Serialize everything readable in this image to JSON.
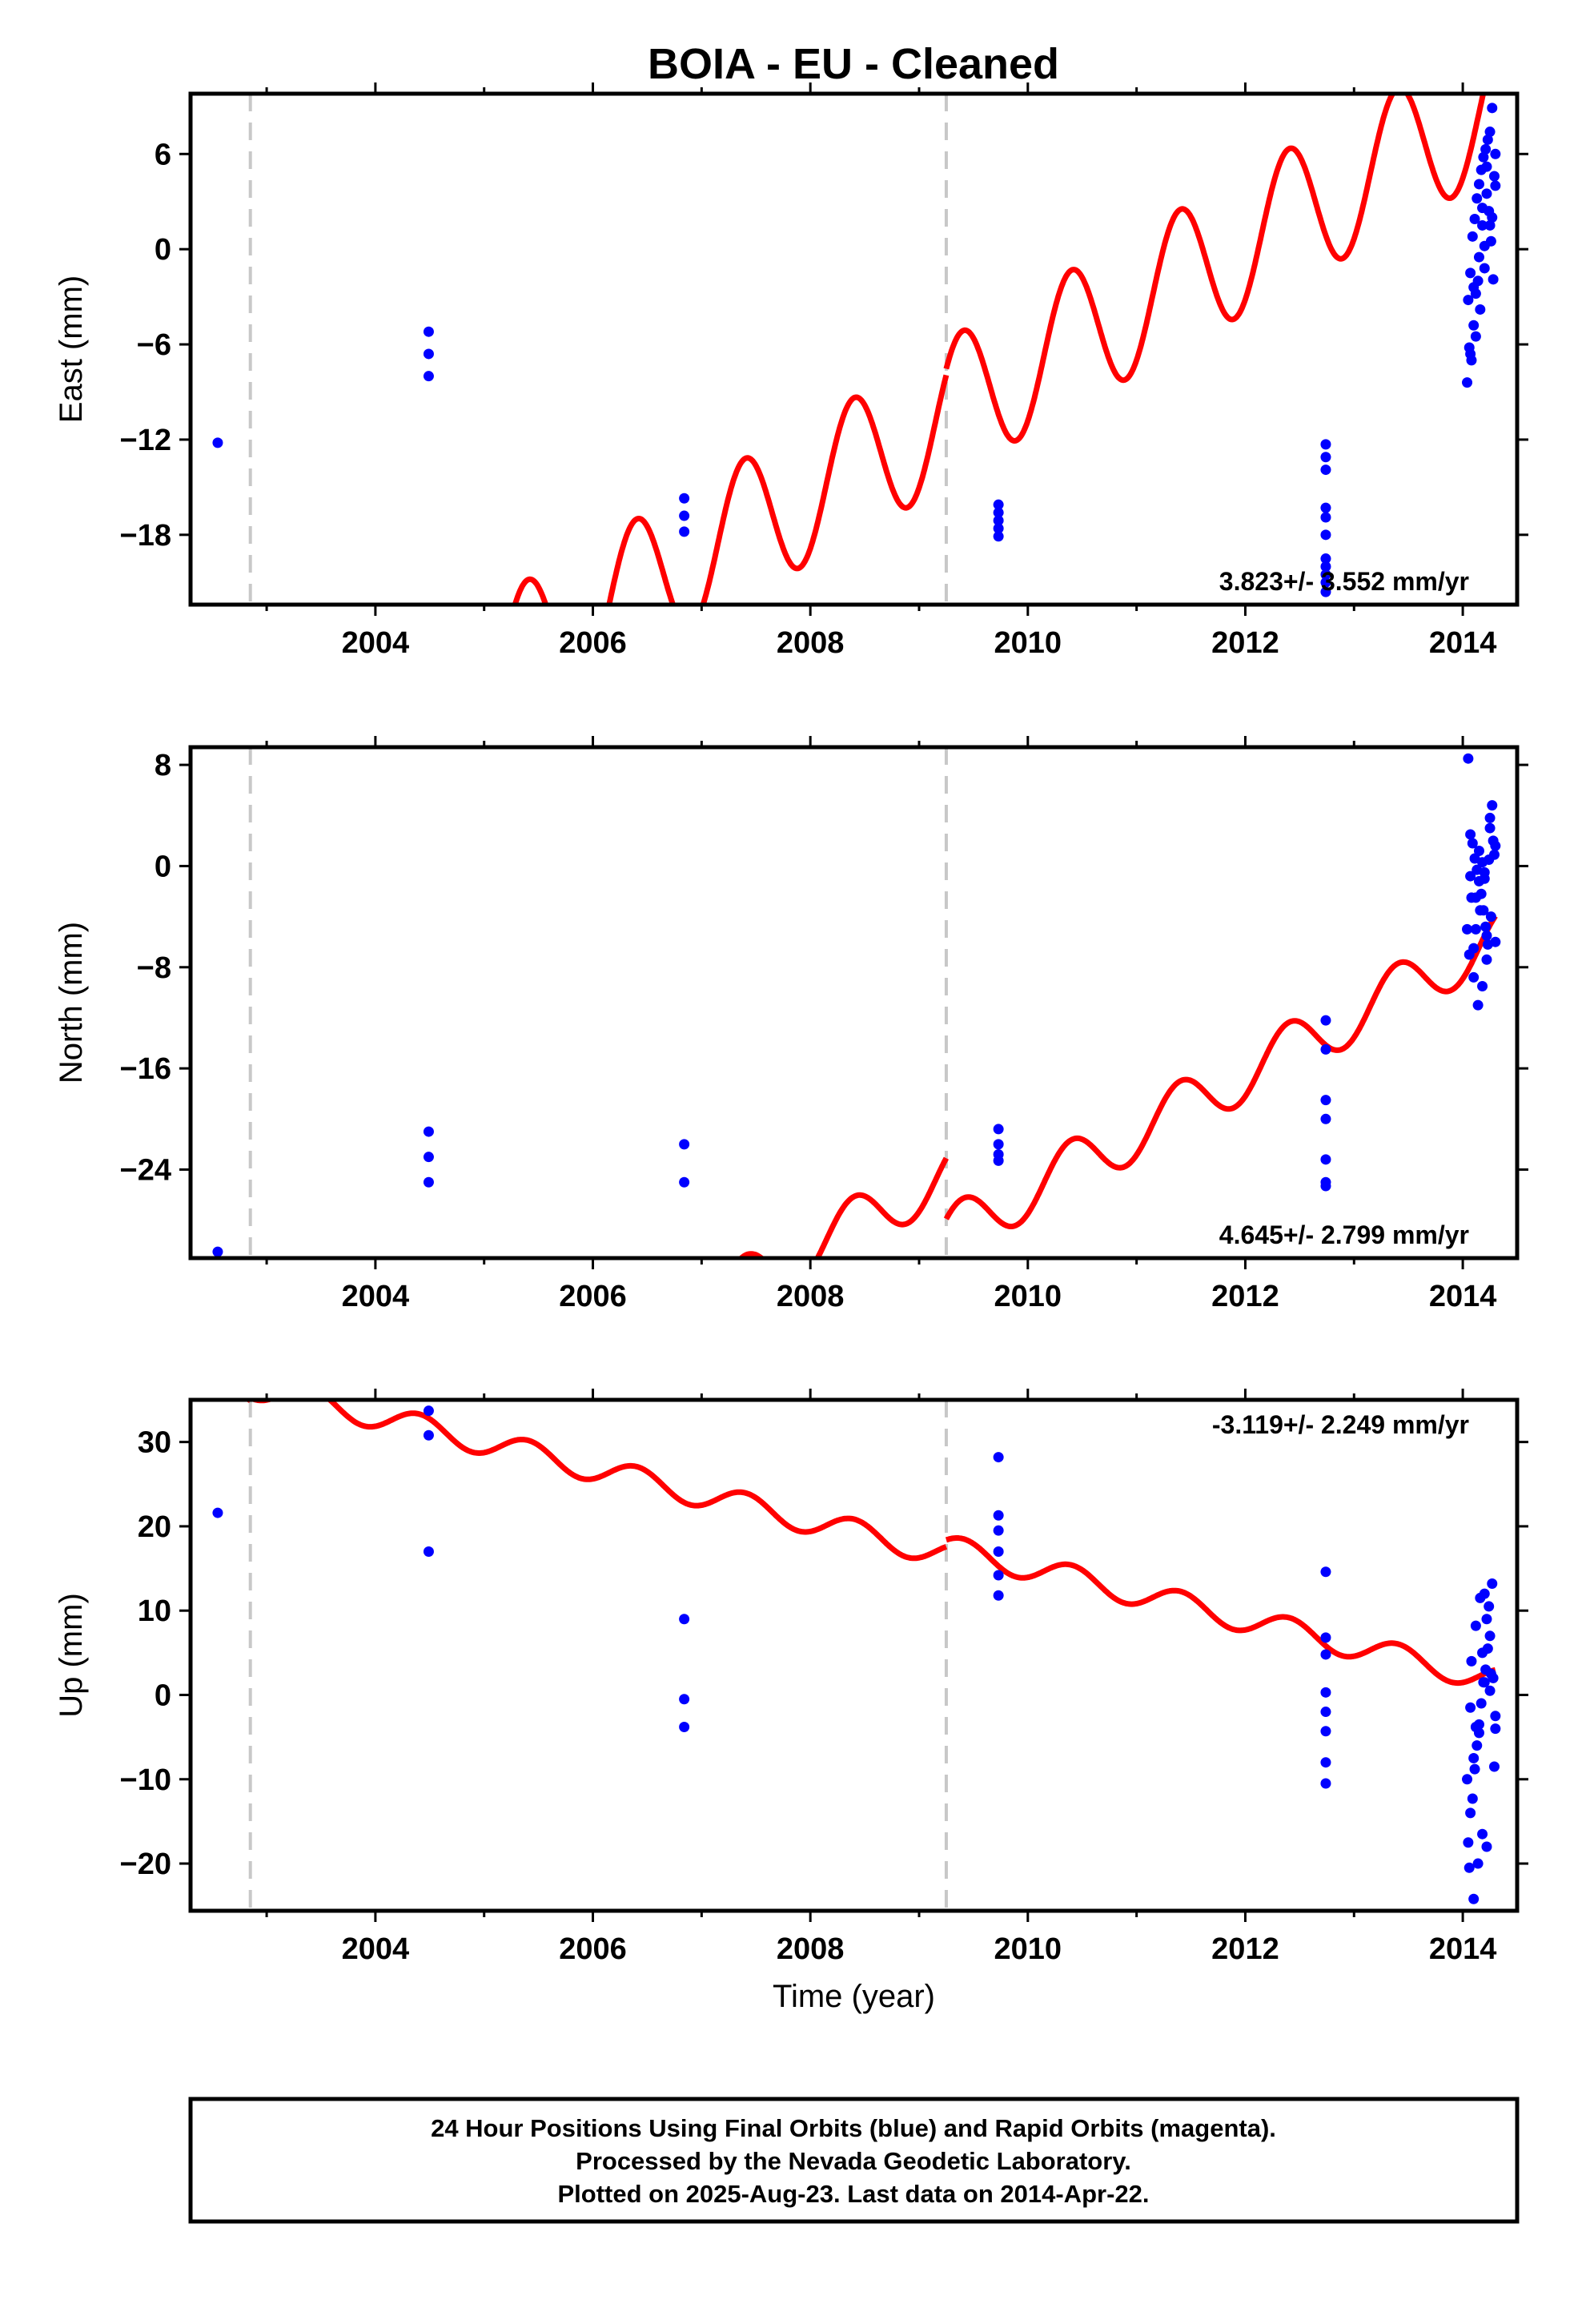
{
  "title": "BOIA  - EU - Cleaned",
  "footer": {
    "line1": "24 Hour Positions Using Final Orbits (blue) and Rapid Orbits (magenta).",
    "line2": "Processed by the Nevada Geodetic Laboratory.",
    "line3": "Plotted on 2025-Aug-23. Last data on 2014-Apr-22."
  },
  "colors": {
    "model": "#ff0000",
    "final_orbits": "#0000ff",
    "offsets": "#c8c8c8",
    "axes": "#000000"
  },
  "chart_data": [
    {
      "type": "scatter",
      "component": "East",
      "ylabel": "East (mm)",
      "xlabel": "",
      "xlim": [
        2002.3,
        2014.5
      ],
      "ylim": [
        -22.4,
        9.8
      ],
      "xticks": [
        2004,
        2006,
        2008,
        2010,
        2012,
        2014
      ],
      "yticks": [
        6,
        0,
        -6,
        -12,
        -18
      ],
      "rate_label": "3.823+/- 3.552 mm/yr",
      "rate_position": "bottom-right",
      "offsets": [
        2002.85,
        2009.25
      ],
      "model": {
        "rate": 3.823,
        "amplitude": 4.4,
        "phase_year": 2004.4,
        "segments": [
          {
            "start": 2002.5,
            "end": 2002.85,
            "mean": -15.9
          },
          {
            "start": 2002.85,
            "end": 2009.25,
            "mean": -15.3
          },
          {
            "start": 2009.25,
            "end": 2014.3,
            "mean": -14.9
          }
        ]
      },
      "series": [
        {
          "color": "#0000ff",
          "x": [
            2002.55,
            2004.49,
            2004.49,
            2004.49,
            2006.84,
            2006.84,
            2006.84,
            2009.73,
            2009.73,
            2009.73,
            2009.73,
            2009.73,
            2012.74,
            2012.74,
            2012.74,
            2012.74,
            2012.74,
            2012.74,
            2012.74,
            2012.74,
            2012.74,
            2012.74,
            2012.74,
            2014.05,
            2014.07,
            2014.09,
            2014.11,
            2014.13,
            2014.15,
            2014.17,
            2014.19,
            2014.21,
            2014.23,
            2014.25,
            2014.27,
            2014.29,
            2014.06,
            2014.1,
            2014.14,
            2014.18,
            2014.22,
            2014.26,
            2014.08,
            2014.12,
            2014.16,
            2014.2,
            2014.24,
            2014.28,
            2014.3,
            2014.04,
            2014.1,
            2014.15,
            2014.2,
            2014.25,
            2014.3,
            2014.07,
            2014.12,
            2014.18,
            2014.22,
            2014.27
          ],
          "y": [
            -12.2,
            -5.2,
            -6.6,
            -8.0,
            -15.7,
            -16.8,
            -17.8,
            -16.1,
            -16.6,
            -17.1,
            -17.6,
            -18.1,
            -12.3,
            -13.1,
            -13.9,
            -16.3,
            -16.9,
            -18.0,
            -19.5,
            -20.0,
            -20.5,
            -21.0,
            -21.6,
            -3.2,
            -1.5,
            0.8,
            1.9,
            3.2,
            4.1,
            5.0,
            5.8,
            6.3,
            6.9,
            7.4,
            8.9,
            4.6,
            -6.2,
            -4.8,
            -2.0,
            1.5,
            3.5,
            0.5,
            -7.0,
            -5.5,
            -3.8,
            -1.2,
            2.4,
            -1.9,
            4.0,
            -8.4,
            -2.4,
            -0.5,
            0.2,
            1.5,
            6.0,
            -6.6,
            -2.8,
            2.6,
            5.2,
            2.0
          ]
        }
      ]
    },
    {
      "type": "scatter",
      "component": "North",
      "ylabel": "North (mm)",
      "xlabel": "",
      "xlim": [
        2002.3,
        2014.5
      ],
      "ylim": [
        -31.0,
        9.4
      ],
      "xticks": [
        2004,
        2006,
        2008,
        2010,
        2012,
        2014
      ],
      "yticks": [
        8,
        0,
        -8,
        -16,
        -24
      ],
      "rate_label": "4.645+/- 2.799 mm/yr",
      "rate_position": "bottom-right",
      "offsets": [
        2002.85,
        2009.25
      ],
      "model": {
        "rate": 4.645,
        "amplitude": 2.2,
        "phase_year": 2004.4,
        "segments": [
          {
            "start": 2002.5,
            "end": 2002.85,
            "mean": -31.5
          },
          {
            "start": 2002.85,
            "end": 2009.25,
            "mean": -30.2
          },
          {
            "start": 2009.25,
            "end": 2014.3,
            "mean": -35.0
          }
        ]
      },
      "series": [
        {
          "color": "#0000ff",
          "x": [
            2002.55,
            2004.49,
            2004.49,
            2004.49,
            2006.84,
            2006.84,
            2009.73,
            2009.73,
            2009.73,
            2009.73,
            2012.74,
            2012.74,
            2012.74,
            2012.74,
            2012.74,
            2012.74,
            2012.74,
            2014.05,
            2014.07,
            2014.09,
            2014.11,
            2014.13,
            2014.15,
            2014.17,
            2014.19,
            2014.21,
            2014.23,
            2014.25,
            2014.27,
            2014.29,
            2014.06,
            2014.1,
            2014.14,
            2014.18,
            2014.22,
            2014.26,
            2014.08,
            2014.12,
            2014.16,
            2014.2,
            2014.24,
            2014.28,
            2014.3,
            2014.04,
            2014.1,
            2014.15,
            2014.2,
            2014.25,
            2014.07,
            2014.12,
            2014.18,
            2014.22,
            2014.3
          ],
          "y": [
            -30.5,
            -21.0,
            -23.0,
            -25.0,
            -22.0,
            -25.0,
            -20.8,
            -22.0,
            -22.8,
            -23.3,
            -12.2,
            -14.5,
            -18.5,
            -20.0,
            -23.2,
            -25.0,
            -25.3,
            8.5,
            2.5,
            1.8,
            0.6,
            -0.3,
            -1.2,
            -2.2,
            -3.5,
            -4.8,
            -6.2,
            3.8,
            4.8,
            0.9,
            -7.0,
            -8.8,
            -11.0,
            -9.5,
            -7.4,
            -4.0,
            -2.5,
            -5.0,
            -3.5,
            -1.0,
            0.5,
            2.0,
            -6.0,
            -5.0,
            -6.5,
            1.2,
            -0.5,
            3.0,
            -0.8,
            -2.5,
            0.3,
            -5.5,
            1.6
          ]
        }
      ]
    },
    {
      "type": "scatter",
      "component": "Up",
      "ylabel": "Up (mm)",
      "xlabel": "Time (year)",
      "xlim": [
        2002.3,
        2014.5
      ],
      "ylim": [
        -25.6,
        35.0
      ],
      "xticks": [
        2004,
        2006,
        2008,
        2010,
        2012,
        2014
      ],
      "yticks": [
        30,
        20,
        10,
        0,
        -10,
        -20
      ],
      "rate_label": "-3.119+/- 2.249 mm/yr",
      "rate_position": "top-right",
      "offsets": [
        2002.85,
        2009.25
      ],
      "model": {
        "rate": -3.119,
        "amplitude": 1.5,
        "phase_year": 2003.4,
        "segments": [
          {
            "start": 2002.5,
            "end": 2002.85,
            "mean": 20.3
          },
          {
            "start": 2002.85,
            "end": 2009.25,
            "mean": 20.6
          },
          {
            "start": 2009.25,
            "end": 2014.3,
            "mean": 21.4
          }
        ]
      },
      "series": [
        {
          "color": "#0000ff",
          "x": [
            2002.55,
            2004.49,
            2004.49,
            2004.49,
            2006.84,
            2006.84,
            2006.84,
            2009.73,
            2009.73,
            2009.73,
            2009.73,
            2009.73,
            2009.73,
            2012.74,
            2012.74,
            2012.74,
            2012.74,
            2012.74,
            2012.74,
            2012.74,
            2012.74,
            2014.05,
            2014.07,
            2014.09,
            2014.11,
            2014.13,
            2014.15,
            2014.17,
            2014.19,
            2014.21,
            2014.23,
            2014.25,
            2014.27,
            2014.29,
            2014.06,
            2014.1,
            2014.14,
            2014.18,
            2014.22,
            2014.26,
            2014.08,
            2014.12,
            2014.16,
            2014.2,
            2014.24,
            2014.28,
            2014.3,
            2014.04,
            2014.1,
            2014.15,
            2014.2,
            2014.25,
            2014.07,
            2014.12,
            2014.18,
            2014.22,
            2014.3
          ],
          "y": [
            21.6,
            33.7,
            30.8,
            17.0,
            9.0,
            -0.5,
            -3.8,
            28.2,
            21.3,
            19.5,
            17.0,
            14.2,
            11.8,
            14.6,
            6.8,
            4.8,
            0.3,
            -2.0,
            -4.3,
            -8.0,
            -10.5,
            -17.5,
            -14.0,
            -12.3,
            -8.8,
            -6.0,
            -3.5,
            -1.0,
            1.5,
            3.0,
            5.5,
            7.0,
            13.2,
            -8.5,
            -20.5,
            -24.2,
            -20.0,
            -16.5,
            -18.0,
            2.5,
            4.0,
            8.2,
            11.5,
            12.0,
            10.5,
            2.0,
            -2.5,
            -10.0,
            -7.5,
            -4.5,
            1.5,
            0.5,
            -1.5,
            -3.8,
            5.0,
            9.0,
            -4.0
          ]
        }
      ]
    }
  ]
}
